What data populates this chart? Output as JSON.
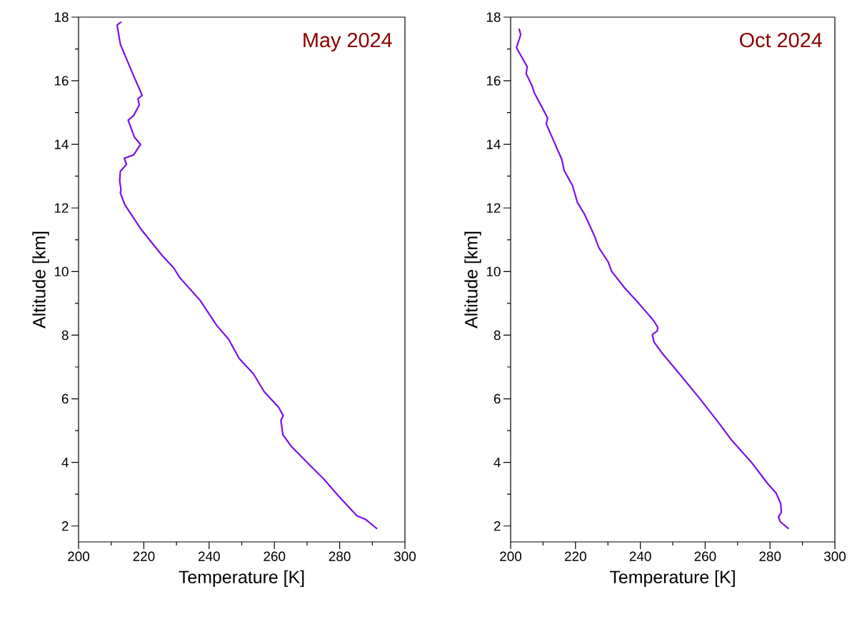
{
  "chart_data": [
    {
      "type": "line",
      "title": "May 2024",
      "xlabel": "Temperature [K]",
      "ylabel": "Altitude [km]",
      "xlim": [
        200,
        300
      ],
      "ylim": [
        1.5,
        18
      ],
      "xticks": [
        200,
        {
          "value": 210,
          "label": null
        },
        220,
        {
          "value": 230,
          "label": null
        },
        240,
        {
          "value": 250,
          "label": null
        },
        260,
        {
          "value": 270,
          "label": null
        },
        280,
        {
          "value": 290,
          "label": null
        },
        300
      ],
      "yticks": [
        2,
        {
          "value": 3,
          "label": null
        },
        4,
        {
          "value": 5,
          "label": null
        },
        6,
        {
          "value": 7,
          "label": null
        },
        8,
        {
          "value": 9,
          "label": null
        },
        10,
        {
          "value": 11,
          "label": null
        },
        12,
        {
          "value": 13,
          "label": null
        },
        14,
        {
          "value": 15,
          "label": null
        },
        16,
        {
          "value": 17,
          "label": null
        },
        18
      ],
      "series": [
        {
          "color": "#7a10e6",
          "x": [
            213.1,
            211.8,
            212.8,
            217.1,
            219.0,
            219.5,
            218.2,
            218.6,
            216.9,
            215.2,
            217.1,
            219.0,
            216.9,
            214.0,
            214.7,
            212.8,
            212.6,
            213.0,
            212.8,
            214.2,
            219.0,
            225.5,
            229.2,
            231.0,
            237.2,
            242.3,
            246.0,
            249.2,
            253.6,
            256.9,
            261.3,
            262.7,
            262.0,
            262.6,
            265.3,
            270.7,
            275.1,
            279.5,
            285.3,
            287.9,
            291.5
          ],
          "values": [
            17.85,
            17.75,
            17.15,
            16.1,
            15.66,
            15.54,
            15.43,
            15.24,
            14.91,
            14.76,
            14.23,
            14.0,
            13.67,
            13.56,
            13.37,
            13.15,
            12.85,
            12.58,
            12.47,
            12.1,
            11.35,
            10.52,
            10.11,
            9.81,
            9.1,
            8.31,
            7.87,
            7.27,
            6.78,
            6.22,
            5.73,
            5.47,
            5.32,
            4.87,
            4.49,
            3.93,
            3.48,
            2.96,
            2.32,
            2.21,
            1.91
          ]
        }
      ]
    },
    {
      "type": "line",
      "title": "Oct 2024",
      "xlabel": "Temperature [K]",
      "ylabel": "Altitude [km]",
      "xlim": [
        200,
        300
      ],
      "ylim": [
        1.5,
        18
      ],
      "xticks": [
        200,
        {
          "value": 210,
          "label": null
        },
        220,
        {
          "value": 230,
          "label": null
        },
        240,
        {
          "value": 250,
          "label": null
        },
        260,
        {
          "value": 270,
          "label": null
        },
        280,
        {
          "value": 290,
          "label": null
        },
        300
      ],
      "yticks": [
        2,
        {
          "value": 3,
          "label": null
        },
        4,
        {
          "value": 5,
          "label": null
        },
        6,
        {
          "value": 7,
          "label": null
        },
        8,
        {
          "value": 9,
          "label": null
        },
        10,
        {
          "value": 11,
          "label": null
        },
        12,
        {
          "value": 13,
          "label": null
        },
        14,
        {
          "value": 15,
          "label": null
        },
        16,
        {
          "value": 17,
          "label": null
        },
        18
      ],
      "series": [
        {
          "color": "#7a10e6",
          "x": [
            202.6,
            203.1,
            201.8,
            205.1,
            204.8,
            206.6,
            207.3,
            211.4,
            211.0,
            215.8,
            216.5,
            219.1,
            220.6,
            222.8,
            225.7,
            227.2,
            230.1,
            231.2,
            235.2,
            239.6,
            244.1,
            245.4,
            245.2,
            243.7,
            244.2,
            246.6,
            252.1,
            258.7,
            263.9,
            268.3,
            274.2,
            279.3,
            281.9,
            283.3,
            283.5,
            282.6,
            283.1,
            285.8
          ],
          "values": [
            17.64,
            17.45,
            17.04,
            16.44,
            16.22,
            15.84,
            15.62,
            14.83,
            14.64,
            13.52,
            13.18,
            12.7,
            12.17,
            11.8,
            11.16,
            10.75,
            10.3,
            10.0,
            9.48,
            8.99,
            8.46,
            8.24,
            8.13,
            8.02,
            7.79,
            7.45,
            6.78,
            5.96,
            5.28,
            4.68,
            4.01,
            3.33,
            3.03,
            2.7,
            2.43,
            2.29,
            2.14,
            1.91
          ]
        }
      ]
    }
  ]
}
